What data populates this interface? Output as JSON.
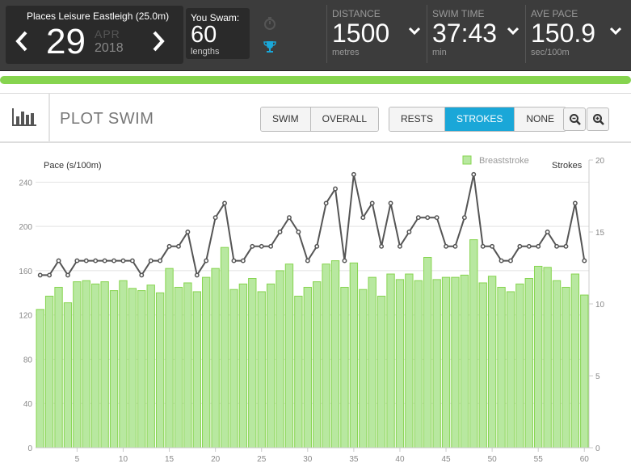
{
  "header": {
    "venue": "Places Leisure Eastleigh (25.0m)",
    "day": "29",
    "month": "APR",
    "year": "2018",
    "swam_label": "You Swam:",
    "lengths": "60",
    "lengths_unit": "lengths",
    "stats": [
      {
        "label": "DISTANCE",
        "value": "1500",
        "unit": "metres"
      },
      {
        "label": "SWIM TIME",
        "value": "37:43",
        "unit": "min"
      },
      {
        "label": "AVE PACE",
        "value": "150.9",
        "unit": "sec/100m"
      }
    ],
    "icons": {
      "prev": "chevron-left-icon",
      "next": "chevron-right-icon",
      "stopwatch": "stopwatch-icon",
      "trophy": "trophy-icon"
    }
  },
  "progress": {
    "fraction": 1.0
  },
  "toolbar": {
    "title": "PLOT SWIM",
    "view_buttons": [
      "SWIM",
      "OVERALL"
    ],
    "overlay_buttons": [
      "RESTS",
      "STROKES",
      "NONE"
    ],
    "active_overlay": "STROKES",
    "zoom_out_icon": "zoom-out-icon",
    "zoom_in_icon": "zoom-in-icon"
  },
  "colors": {
    "accent": "#1aa7d8",
    "bar": "#b8e8a0",
    "bar_edge": "#86d44f",
    "line": "#555555"
  },
  "chart_data": {
    "type": "bar",
    "legend": [
      "Breaststroke"
    ],
    "ylabel": "Pace (s/100m)",
    "y2label": "Strokes",
    "ylim": [
      0,
      260
    ],
    "y2lim": [
      0,
      20
    ],
    "yticks": [
      0,
      40,
      80,
      120,
      160,
      200,
      240
    ],
    "y2ticks": [
      0,
      5,
      10,
      15,
      20
    ],
    "xticks": [
      5,
      10,
      15,
      20,
      25,
      30,
      35,
      40,
      45,
      50,
      55,
      60
    ],
    "x": [
      1,
      2,
      3,
      4,
      5,
      6,
      7,
      8,
      9,
      10,
      11,
      12,
      13,
      14,
      15,
      16,
      17,
      18,
      19,
      20,
      21,
      22,
      23,
      24,
      25,
      26,
      27,
      28,
      29,
      30,
      31,
      32,
      33,
      34,
      35,
      36,
      37,
      38,
      39,
      40,
      41,
      42,
      43,
      44,
      45,
      46,
      47,
      48,
      49,
      50,
      51,
      52,
      53,
      54,
      55,
      56,
      57,
      58,
      59,
      60
    ],
    "series": [
      {
        "name": "Breaststroke",
        "type": "bar",
        "values": [
          125,
          137,
          145,
          131,
          150,
          151,
          148,
          150,
          142,
          151,
          144,
          142,
          147,
          140,
          162,
          145,
          149,
          141,
          154,
          162,
          181,
          143,
          148,
          153,
          141,
          148,
          160,
          166,
          137,
          145,
          150,
          166,
          169,
          145,
          167,
          143,
          154,
          137,
          157,
          152,
          157,
          151,
          172,
          152,
          154,
          154,
          156,
          188,
          149,
          155,
          145,
          141,
          148,
          153,
          164,
          163,
          151,
          145,
          157,
          138
        ]
      },
      {
        "name": "Strokes",
        "type": "line",
        "axis": "right",
        "values": [
          12,
          12,
          13,
          12,
          13,
          13,
          13,
          13,
          13,
          13,
          13,
          12,
          13,
          13,
          14,
          14,
          15,
          12,
          13,
          16,
          17,
          13,
          13,
          14,
          14,
          14,
          15,
          16,
          15,
          13,
          14,
          17,
          18,
          13,
          19,
          16,
          17,
          14,
          17,
          14,
          15,
          16,
          16,
          16,
          14,
          14,
          16,
          19,
          14,
          14,
          13,
          13,
          14,
          14,
          14,
          15,
          14,
          14,
          17,
          13
        ]
      }
    ]
  }
}
